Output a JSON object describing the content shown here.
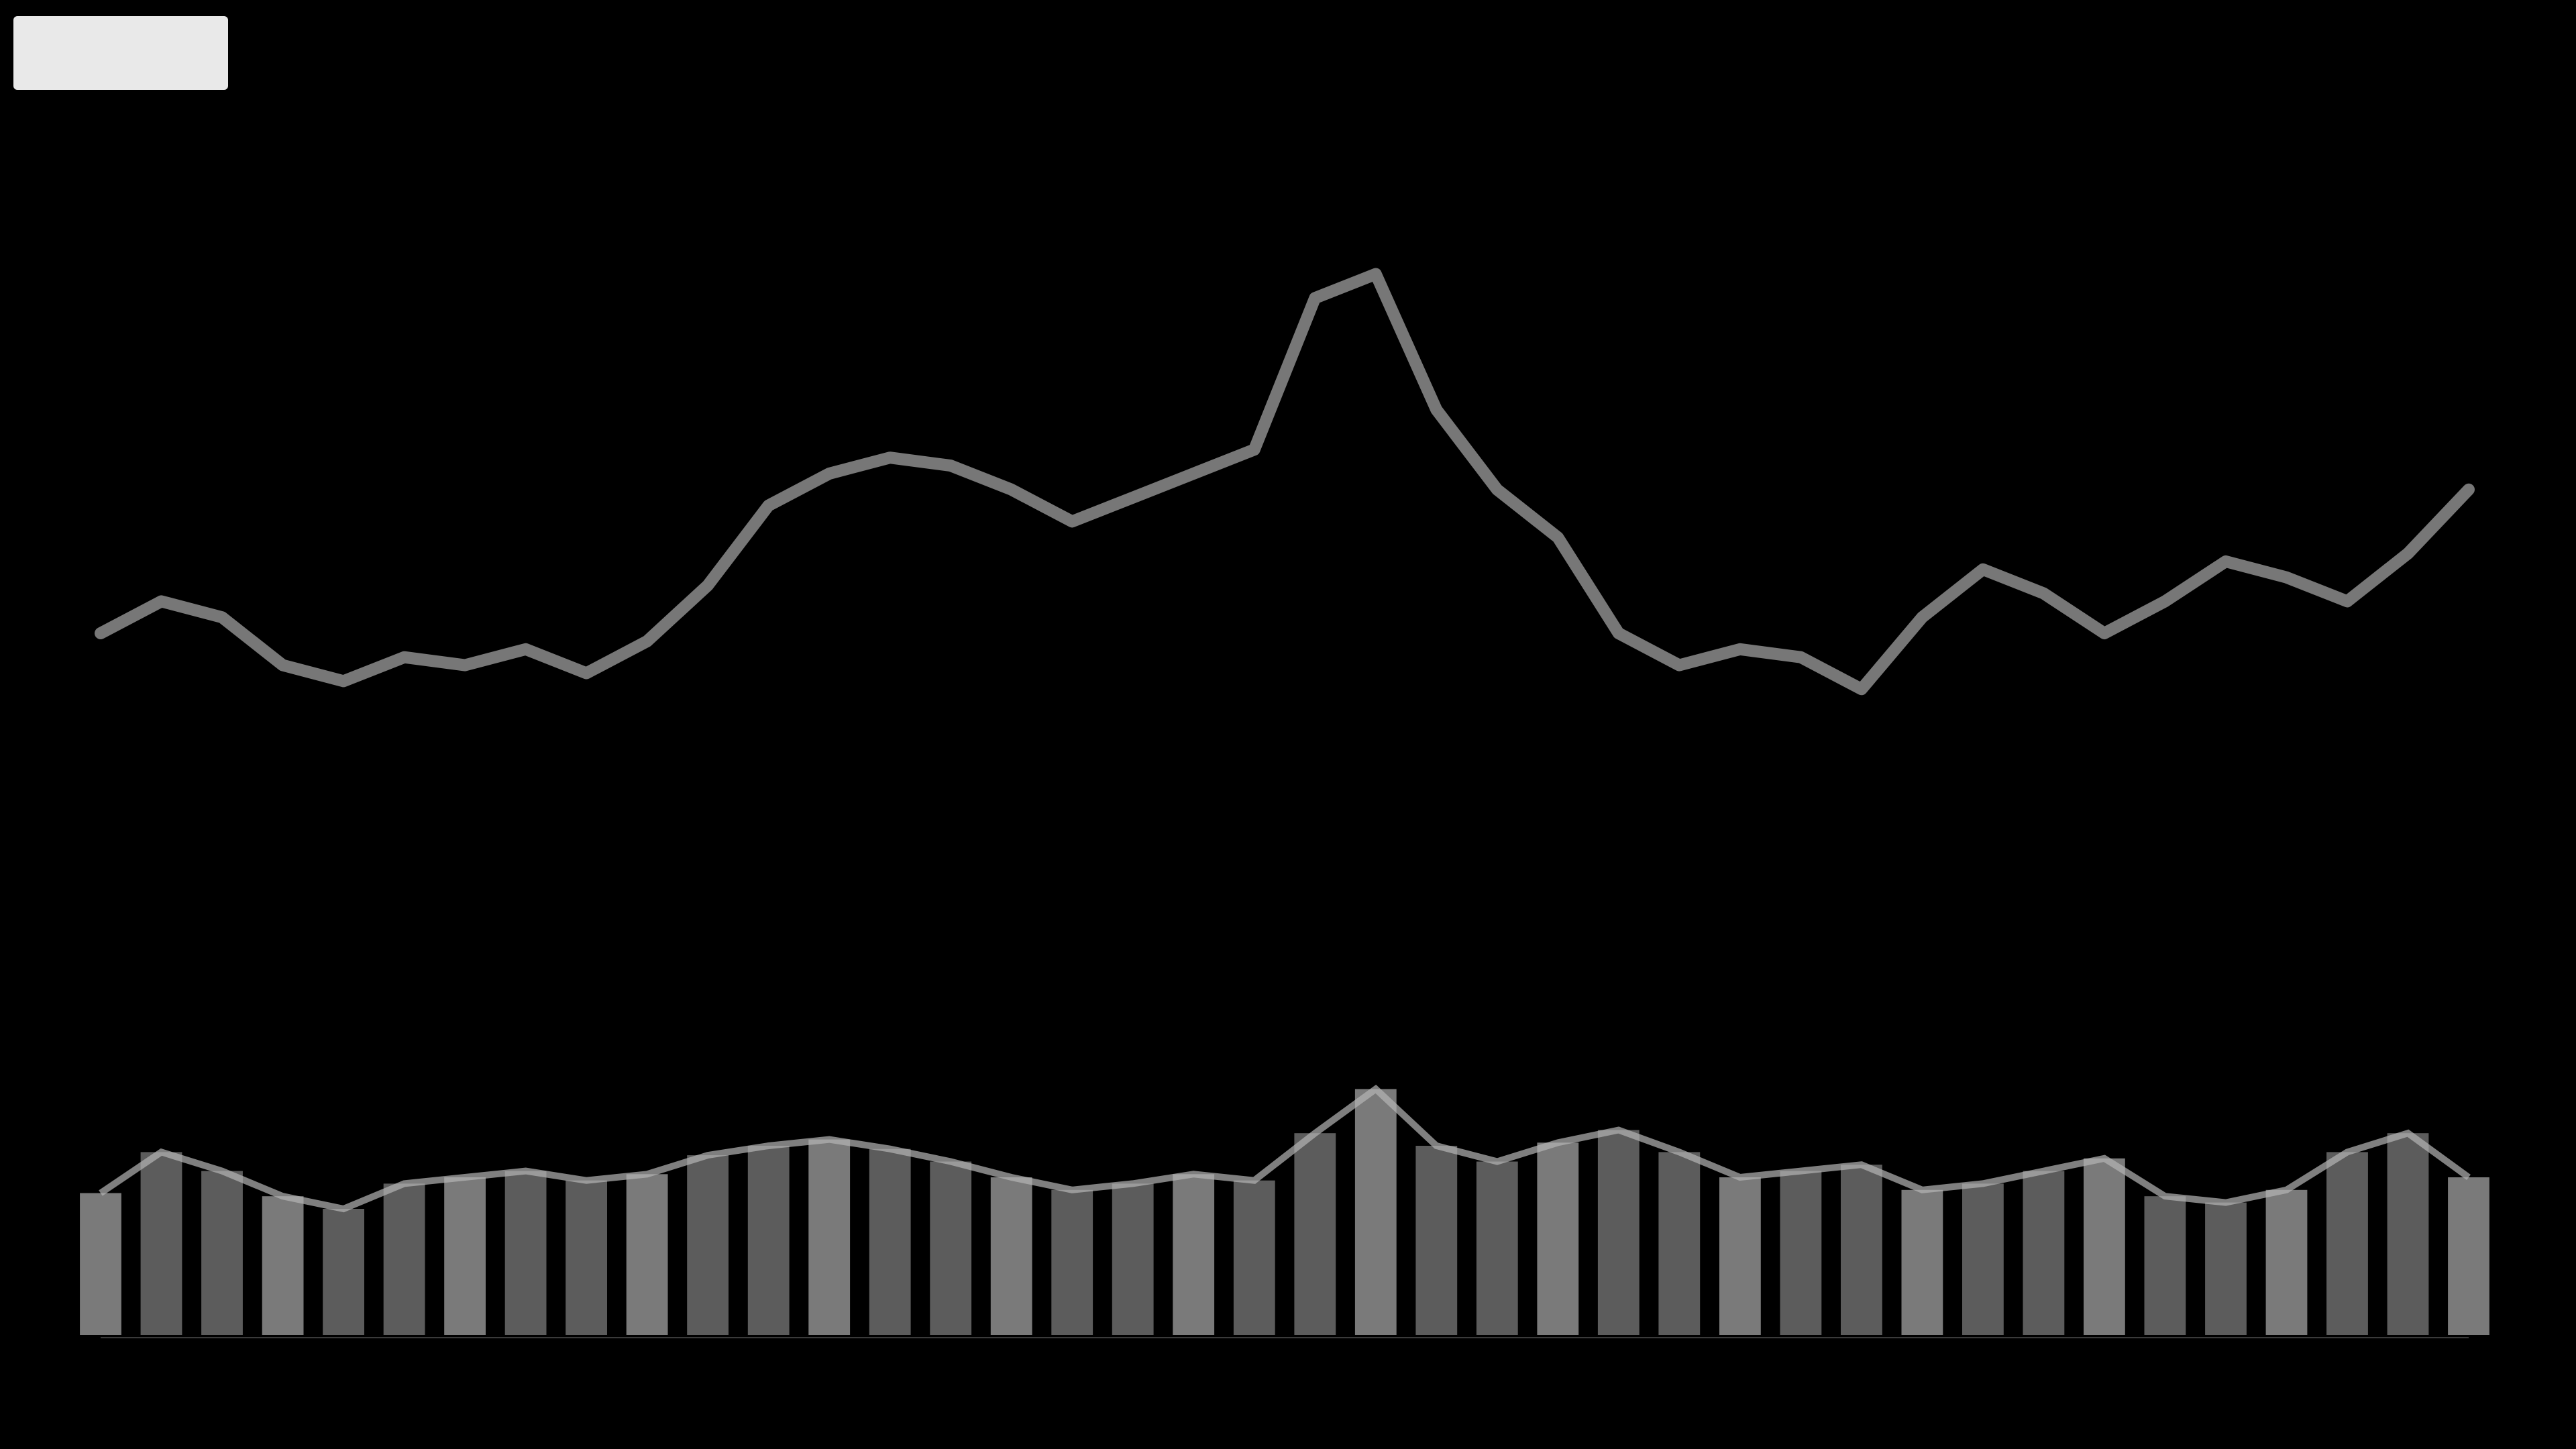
{
  "header": {
    "symbol": "",
    "subtitle": ""
  },
  "volume_panel": {
    "label": ""
  },
  "colors": {
    "background": "#000000",
    "price_line": "#8c8c8c",
    "volume_bar": "#6a6a6a",
    "accent_tag": "#e9e9e9"
  },
  "chart_data": [
    {
      "type": "line",
      "title": "",
      "xlabel": "",
      "ylabel": "",
      "x": [
        0,
        1,
        2,
        3,
        4,
        5,
        6,
        7,
        8,
        9,
        10,
        11,
        12,
        13,
        14,
        15,
        16,
        17,
        18,
        19,
        20,
        21,
        22,
        23,
        24,
        25,
        26,
        27,
        28,
        29,
        30,
        31,
        32,
        33,
        34,
        35,
        36,
        37,
        38,
        39
      ],
      "series": [
        {
          "values": [
            40,
            44,
            42,
            36,
            34,
            37,
            36,
            38,
            35,
            39,
            46,
            56,
            60,
            62,
            61,
            58,
            54,
            57,
            60,
            63,
            82,
            85,
            68,
            58,
            52,
            40,
            36,
            38,
            37,
            33,
            42,
            48,
            45,
            40,
            44,
            49,
            47,
            44,
            50,
            58
          ]
        }
      ],
      "ylim": [
        0,
        100
      ],
      "grid": false
    },
    {
      "type": "bar",
      "title": "",
      "xlabel": "",
      "ylabel": "",
      "x": [
        0,
        1,
        2,
        3,
        4,
        5,
        6,
        7,
        8,
        9,
        10,
        11,
        12,
        13,
        14,
        15,
        16,
        17,
        18,
        19,
        20,
        21,
        22,
        23,
        24,
        25,
        26,
        27,
        28,
        29,
        30,
        31,
        32,
        33,
        34,
        35,
        36,
        37,
        38,
        39
      ],
      "values": [
        45,
        58,
        52,
        44,
        40,
        48,
        50,
        52,
        49,
        51,
        57,
        60,
        62,
        59,
        55,
        50,
        46,
        48,
        51,
        49,
        64,
        78,
        60,
        55,
        61,
        65,
        58,
        50,
        52,
        54,
        46,
        48,
        52,
        56,
        44,
        42,
        46,
        58,
        64,
        50
      ],
      "ylim": [
        0,
        100
      ],
      "grid": false
    }
  ]
}
